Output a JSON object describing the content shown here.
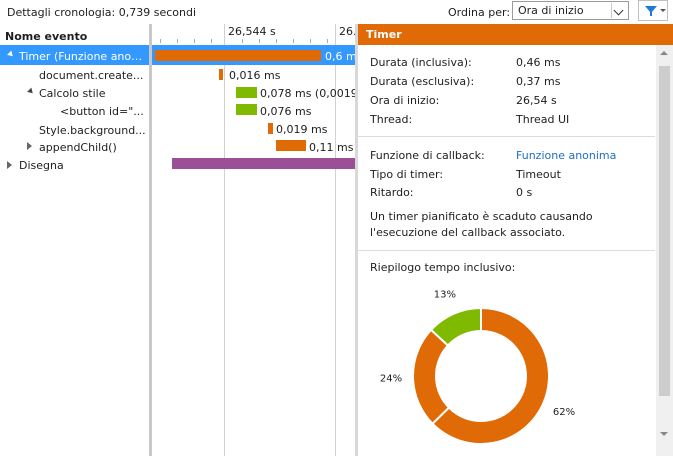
{
  "header": {
    "title": "Dettagli cronologia: 0,739 secondi",
    "sort_label": "Ordina per:",
    "sort_value": "Ora di inizio"
  },
  "tree": {
    "column_header": "Nome evento",
    "items": [
      {
        "label": "Timer (Funzione anoni...",
        "duration": "0,6 m",
        "color": "#e06a06"
      },
      {
        "label": "document.create...",
        "duration": "0,016 ms",
        "color": "#e06a06"
      },
      {
        "label": "Calcolo stile",
        "duration": "0,078 ms (0,0019...",
        "color": "#7fba00"
      },
      {
        "label": "<button id=\"...",
        "duration": "0,076 ms",
        "color": "#7fba00"
      },
      {
        "label": "Style.background...",
        "duration": "0,019 ms",
        "color": "#e06a06"
      },
      {
        "label": "appendChild()",
        "duration": "0,11 ms",
        "color": "#e06a06"
      },
      {
        "label": "Disegna",
        "duration": "",
        "color": "#9b4f96"
      }
    ]
  },
  "ruler": {
    "labels": [
      "26,544 s",
      "26."
    ]
  },
  "details": {
    "title": "Timer",
    "props": [
      {
        "key": "Durata (inclusiva):",
        "value": "0,46 ms"
      },
      {
        "key": "Durata (esclusiva):",
        "value": "0,37 ms"
      },
      {
        "key": "Ora di inizio:",
        "value": "26,54 s"
      },
      {
        "key": "Thread:",
        "value": "Thread UI"
      }
    ],
    "props2": [
      {
        "key": "Funzione di callback:",
        "value": "Funzione anonima"
      },
      {
        "key": "Tipo di timer:",
        "value": "Timeout"
      },
      {
        "key": "Ritardo:",
        "value": "0 s"
      }
    ],
    "description": "Un timer pianificato è scaduto causando l'esecuzione del callback associato.",
    "summary_title": "Riepilogo tempo inclusivo:"
  },
  "chart_data": {
    "type": "pie",
    "title": "Riepilogo tempo inclusivo:",
    "categories": [
      "",
      "",
      ""
    ],
    "values": [
      62,
      24,
      13
    ],
    "labels": [
      "62%",
      "24%",
      "13%"
    ],
    "colors": [
      "#e06a06",
      "#e06a06",
      "#7fba00"
    ],
    "donut": true
  }
}
